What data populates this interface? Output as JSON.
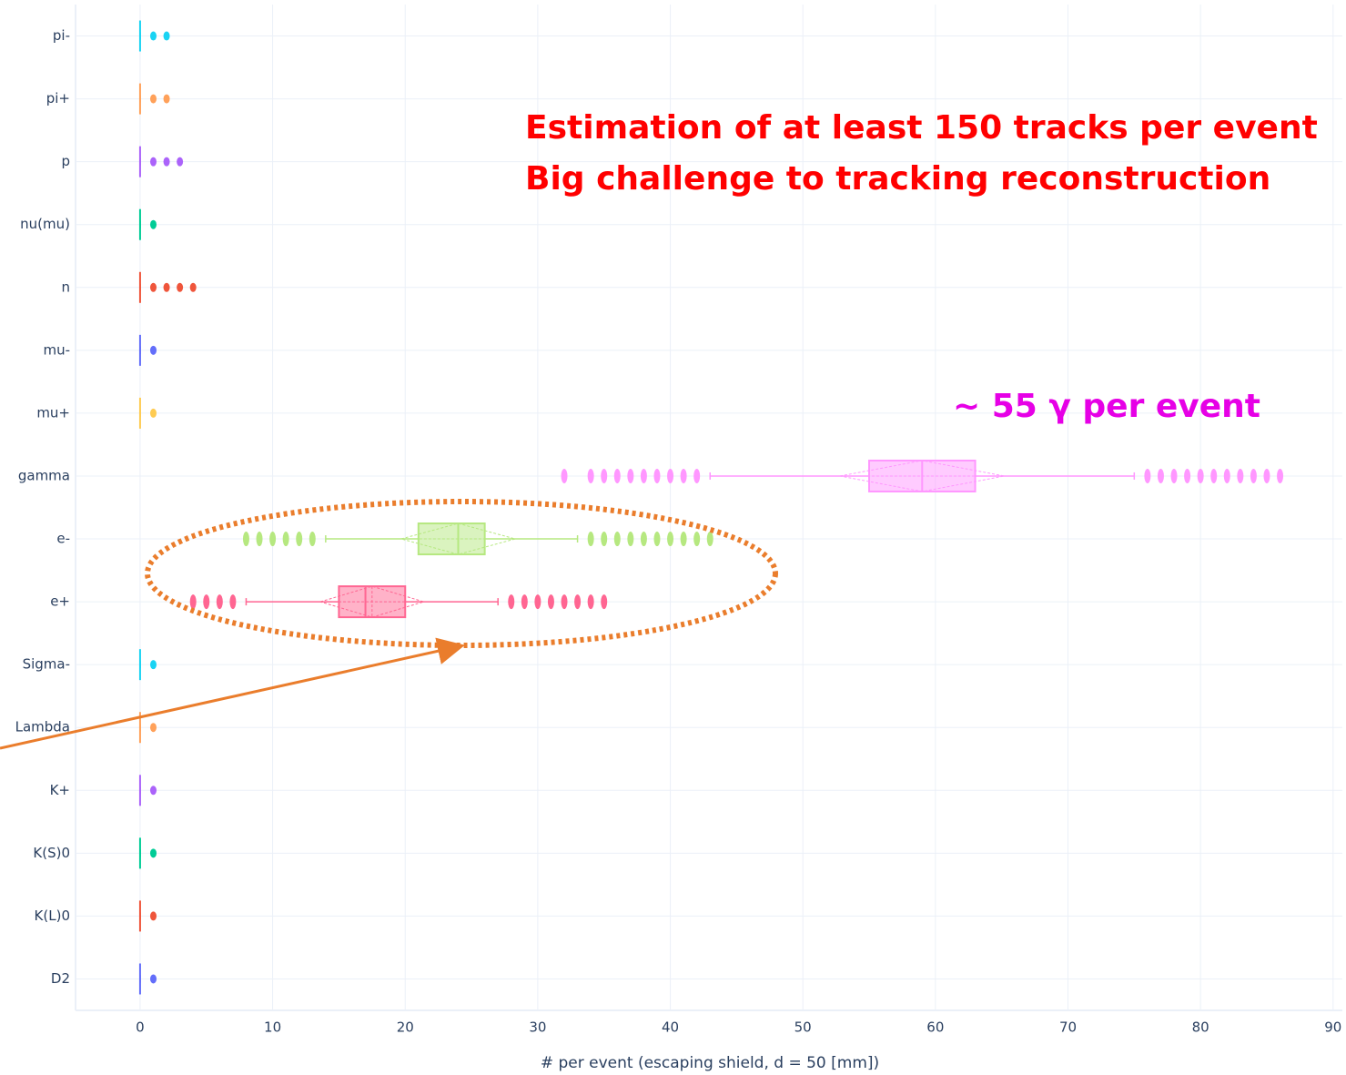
{
  "chart_data": {
    "type": "box",
    "orientation": "horizontal",
    "x_label": "# per event (escaping shield, d = 50 [mm])",
    "xlim": [
      -4.87,
      90.7
    ],
    "xticks": [
      0,
      10,
      20,
      30,
      40,
      50,
      60,
      70,
      80,
      90
    ],
    "grid": true,
    "categories": [
      "pi-",
      "pi+",
      "p",
      "nu(mu)",
      "n",
      "mu-",
      "mu+",
      "gamma",
      "e-",
      "e+",
      "Sigma-",
      "Lambda",
      "K+",
      "K(S)0",
      "K(L)0",
      "D2"
    ],
    "series": [
      {
        "color": "#19d3f3",
        "lower": 0,
        "q1": 0,
        "median": 0,
        "q3": 0,
        "upper": 0,
        "outliers": [
          1,
          2
        ]
      },
      {
        "color": "#FFA15A",
        "lower": 0,
        "q1": 0,
        "median": 0,
        "q3": 0,
        "upper": 0,
        "outliers": [
          1,
          2
        ]
      },
      {
        "color": "#AB63FA",
        "lower": 0,
        "q1": 0,
        "median": 0,
        "q3": 0,
        "upper": 0,
        "outliers": [
          1,
          2,
          3
        ]
      },
      {
        "color": "#00CC96",
        "lower": 0,
        "q1": 0,
        "median": 0,
        "q3": 0,
        "upper": 0,
        "outliers": [
          1
        ]
      },
      {
        "color": "#EF553B",
        "lower": 0,
        "q1": 0,
        "median": 0,
        "q3": 0,
        "upper": 0,
        "outliers": [
          1,
          2,
          3,
          4
        ]
      },
      {
        "color": "#636EFA",
        "lower": 0,
        "q1": 0,
        "median": 0,
        "q3": 0,
        "upper": 0,
        "outliers": [
          1
        ]
      },
      {
        "color": "#FECB52",
        "lower": 0,
        "q1": 0,
        "median": 0,
        "q3": 0,
        "upper": 0,
        "outliers": [
          1
        ]
      },
      {
        "color": "#FF97FF",
        "lower": 43,
        "q1": 55,
        "median": 59,
        "q3": 63,
        "upper": 75,
        "mean": 59,
        "sd": 6.2,
        "outliers": [
          32,
          34,
          35,
          36,
          37,
          38,
          39,
          40,
          41,
          42,
          76,
          77,
          78,
          79,
          80,
          81,
          82,
          83,
          84,
          85,
          86
        ]
      },
      {
        "color": "#B6E880",
        "lower": 14,
        "q1": 21,
        "median": 24,
        "q3": 26,
        "upper": 33,
        "mean": 24,
        "sd": 4.3,
        "outliers": [
          8,
          9,
          10,
          11,
          12,
          13,
          34,
          35,
          36,
          37,
          38,
          39,
          40,
          41,
          42,
          43
        ]
      },
      {
        "color": "#FF6692",
        "lower": 8,
        "q1": 15,
        "median": 17,
        "q3": 20,
        "upper": 27,
        "mean": 17.5,
        "sd": 3.9,
        "outliers": [
          4,
          5,
          6,
          7,
          28,
          29,
          30,
          31,
          32,
          33,
          34,
          35
        ]
      },
      {
        "color": "#19d3f3",
        "lower": 0,
        "q1": 0,
        "median": 0,
        "q3": 0,
        "upper": 0,
        "outliers": [
          1
        ]
      },
      {
        "color": "#FFA15A",
        "lower": 0,
        "q1": 0,
        "median": 0,
        "q3": 0,
        "upper": 0,
        "outliers": [
          1
        ]
      },
      {
        "color": "#AB63FA",
        "lower": 0,
        "q1": 0,
        "median": 0,
        "q3": 0,
        "upper": 0,
        "outliers": [
          1
        ]
      },
      {
        "color": "#00CC96",
        "lower": 0,
        "q1": 0,
        "median": 0,
        "q3": 0,
        "upper": 0,
        "outliers": [
          1
        ]
      },
      {
        "color": "#EF553B",
        "lower": 0,
        "q1": 0,
        "median": 0,
        "q3": 0,
        "upper": 0,
        "outliers": [
          1
        ]
      },
      {
        "color": "#636EFA",
        "lower": 0,
        "q1": 0,
        "median": 0,
        "q3": 0,
        "upper": 0,
        "outliers": [
          1
        ]
      }
    ],
    "annotations": [
      {
        "text": "Estimation of at least 150 tracks per event",
        "color": "#ff0000"
      },
      {
        "text": "Big challenge to tracking reconstruction",
        "color": "#ff0000"
      },
      {
        "text": "~ 55 γ per event",
        "color": "#e600e6"
      }
    ]
  }
}
